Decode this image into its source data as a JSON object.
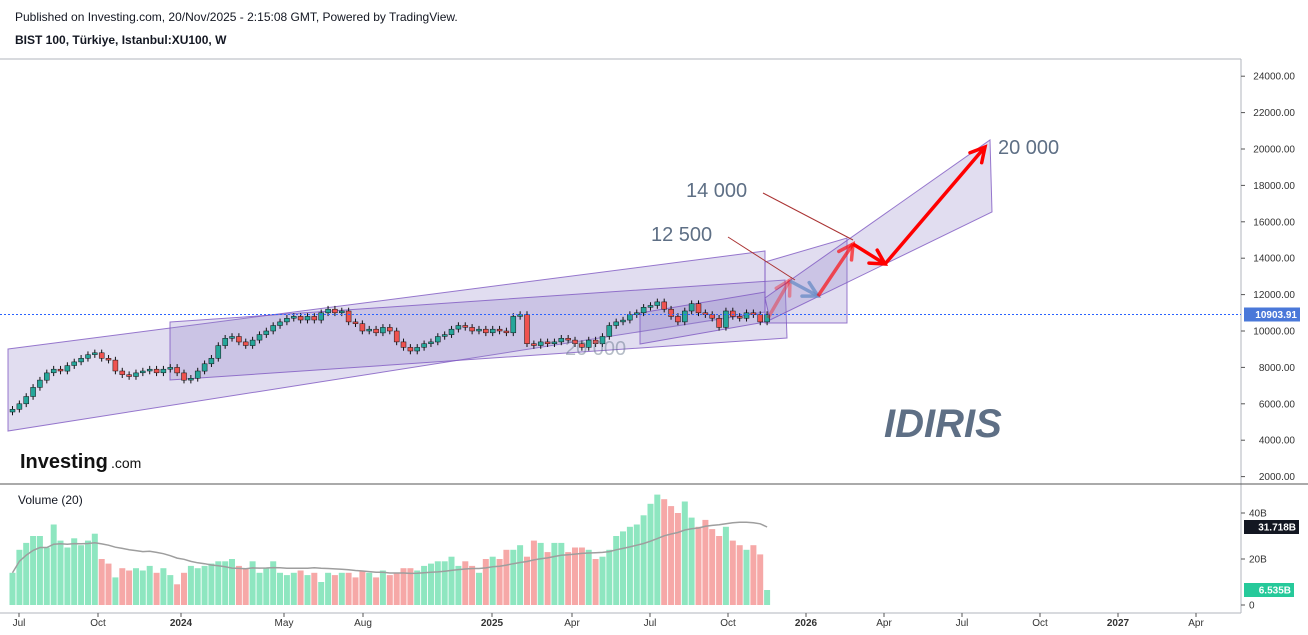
{
  "header": {
    "published": "Published on Investing.com, 20/Nov/2025 - 2:15:08 GMT, Powered by TradingView.",
    "symbol": "BIST 100, Türkiye, Istanbul:XU100, W"
  },
  "logo": {
    "main": "Investing",
    "suffix": ".com"
  },
  "watermark": "IDIRIS",
  "annotations": {
    "a12500": "12 500",
    "a14000": "14 000",
    "a20000": "20 000",
    "faint": "20 000"
  },
  "volume_title": "Volume (20)",
  "colors": {
    "up": "#26a69a",
    "down": "#ef5350",
    "up_vol": "#8ee6c0",
    "down_vol": "#f6a8a7",
    "channel_fill": "#9485c8",
    "channel_line": "#7e57c2",
    "arrow_red": "#ff0000",
    "arrow_blue": "#6d8ec7",
    "price_line": "#2962ff",
    "ma": "#9e9e9e"
  },
  "chart_data": [
    {
      "type": "candlestick",
      "title": "BIST 100, Türkiye, Istanbul:XU100, W",
      "interval": "W",
      "x_ticks": [
        "Jul",
        "Oct",
        "2024",
        "May",
        "Aug",
        "2025",
        "Apr",
        "Jul",
        "Oct",
        "2026",
        "Apr",
        "Jul",
        "Oct",
        "2027",
        "Apr"
      ],
      "y_ticks": [
        "24000.00",
        "22000.00",
        "20000.00",
        "18000.00",
        "16000.00",
        "14000.00",
        "12000.00",
        "10000.00",
        "8000.00",
        "6000.00",
        "4000.00",
        "2000.00"
      ],
      "ylim": [
        1500,
        25000
      ],
      "last_price": 10903.91,
      "last_price_label": "10903.91",
      "closes_weekly": [
        5700,
        6000,
        6400,
        6900,
        7300,
        7700,
        7900,
        7800,
        8100,
        8300,
        8500,
        8700,
        8800,
        8500,
        8400,
        7800,
        7600,
        7500,
        7700,
        7800,
        7900,
        7700,
        7900,
        8000,
        7700,
        7300,
        7400,
        7800,
        8200,
        8500,
        9200,
        9600,
        9700,
        9400,
        9200,
        9500,
        9800,
        10000,
        10300,
        10500,
        10700,
        10800,
        10600,
        10800,
        10600,
        11000,
        11200,
        11000,
        11100,
        10500,
        10400,
        10000,
        10100,
        9900,
        10200,
        10000,
        9400,
        9100,
        8900,
        9100,
        9300,
        9400,
        9700,
        9800,
        10100,
        10300,
        10200,
        10000,
        10100,
        9900,
        10100,
        10000,
        9900,
        10800,
        10900,
        9300,
        9200,
        9400,
        9300,
        9400,
        9600,
        9500,
        9300,
        9100,
        9500,
        9300,
        9700,
        10300,
        10500,
        10600,
        10900,
        11000,
        11300,
        11400,
        11600,
        11200,
        10800,
        10500,
        11100,
        11500,
        11000,
        10900,
        10700,
        10200,
        11100,
        10800,
        10700,
        11000,
        10900,
        10500,
        10903.91
      ],
      "annotations": [
        {
          "text": "12 500",
          "value": 12500
        },
        {
          "text": "14 000",
          "value": 14000
        },
        {
          "text": "20 000",
          "value": 20000
        }
      ]
    },
    {
      "type": "bar",
      "title": "Volume (20)",
      "y_ticks": [
        "40B",
        "20B",
        "0"
      ],
      "ylim": [
        0,
        50
      ],
      "ma_period": 20,
      "ma_last_label": "31.718B",
      "last_label": "6.535B",
      "volumes_B": [
        14,
        24,
        27,
        30,
        30,
        25,
        35,
        28,
        25,
        29,
        26,
        28,
        31,
        20,
        18,
        12,
        16,
        15,
        16,
        15,
        17,
        14,
        16,
        13,
        9,
        14,
        17,
        16,
        17,
        18,
        19,
        19,
        20,
        17,
        16,
        19,
        14,
        16,
        19,
        14,
        13,
        14,
        15,
        13,
        14,
        10,
        14,
        13,
        14,
        14,
        12,
        15,
        14,
        12,
        15,
        13,
        14,
        16,
        16,
        15,
        17,
        18,
        19,
        19,
        21,
        17,
        19,
        17,
        14,
        20,
        21,
        20,
        24,
        24,
        26,
        21,
        28,
        27,
        23,
        27,
        27,
        23,
        25,
        25,
        24,
        20,
        21,
        24,
        30,
        32,
        34,
        35,
        39,
        44,
        48,
        46,
        43,
        40,
        45,
        38,
        34,
        37,
        33,
        30,
        34,
        28,
        26,
        24,
        26,
        22,
        6.535
      ],
      "volume_up": [
        true,
        true,
        true,
        true,
        true,
        true,
        true,
        true,
        true,
        true,
        true,
        true,
        true,
        false,
        false,
        true,
        false,
        false,
        true,
        true,
        true,
        false,
        true,
        true,
        false,
        false,
        true,
        true,
        true,
        true,
        true,
        true,
        true,
        false,
        false,
        true,
        true,
        true,
        true,
        true,
        true,
        true,
        false,
        true,
        false,
        true,
        true,
        false,
        true,
        false,
        false,
        false,
        true,
        false,
        true,
        false,
        false,
        false,
        false,
        true,
        true,
        true,
        true,
        true,
        true,
        true,
        false,
        false,
        true,
        false,
        true,
        false,
        false,
        true,
        true,
        false,
        false,
        true,
        false,
        true,
        true,
        false,
        false,
        false,
        true,
        false,
        true,
        true,
        true,
        true,
        true,
        true,
        true,
        true,
        true,
        false,
        false,
        false,
        true,
        true,
        false,
        false,
        false,
        false,
        true,
        false,
        false,
        true,
        false,
        false,
        true
      ]
    }
  ]
}
